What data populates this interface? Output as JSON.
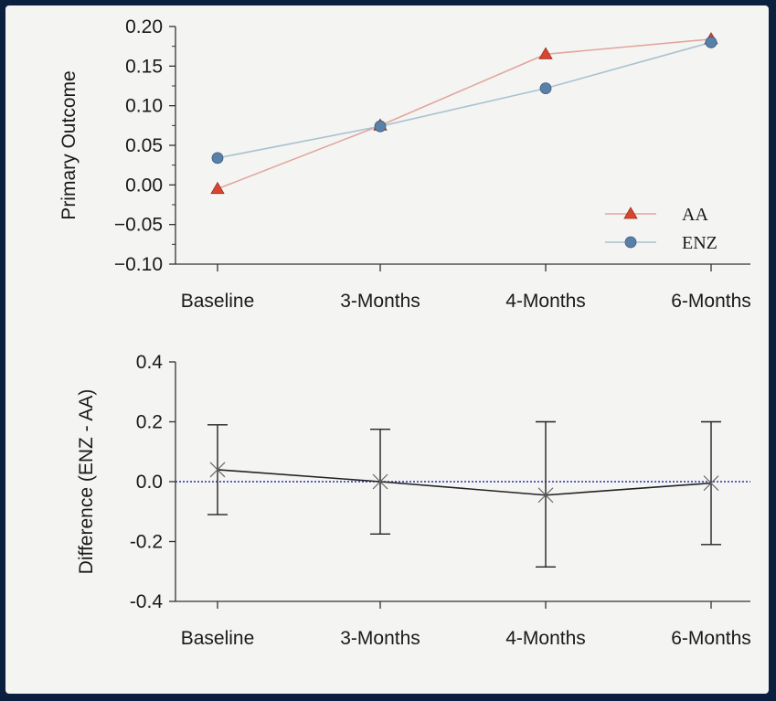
{
  "chart_data": [
    {
      "type": "line",
      "ylabel": "Primary Outcome",
      "categories": [
        "Baseline",
        "3-Months",
        "4-Months",
        "6-Months"
      ],
      "ylim": [
        -0.1,
        0.2
      ],
      "yticks": [
        0.2,
        0.15,
        0.1,
        0.05,
        0.0,
        -0.05,
        -0.1
      ],
      "ytick_labels": [
        "0.20",
        "0.15",
        "0.10",
        "0.05",
        "0.00",
        "−0.05",
        "−0.10"
      ],
      "grid": false,
      "legend": "bottom-right",
      "series": [
        {
          "name": "AA",
          "marker": "triangle",
          "color": "#d8462f",
          "line_color": "#e2a69c",
          "values": [
            -0.005,
            0.075,
            0.165,
            0.184
          ]
        },
        {
          "name": "ENZ",
          "marker": "circle",
          "color": "#5a80a8",
          "line_color": "#a9c2cf",
          "values": [
            0.034,
            0.074,
            0.122,
            0.18
          ]
        }
      ]
    },
    {
      "type": "errorbar",
      "ylabel": "Difference (ENZ - AA)",
      "categories": [
        "Baseline",
        "3-Months",
        "4-Months",
        "6-Months"
      ],
      "ylim": [
        -0.4,
        0.4
      ],
      "yticks": [
        0.4,
        0.2,
        0.0,
        -0.2,
        -0.4
      ],
      "ytick_labels": [
        "0.4",
        "0.2",
        "0.0",
        "-0.2",
        "-0.4"
      ],
      "grid": false,
      "reference_line": {
        "y": 0.0,
        "style": "dotted",
        "color": "#2b2fa8"
      },
      "series": [
        {
          "marker": "x",
          "color": "#222222",
          "values": [
            0.04,
            0.0,
            -0.045,
            -0.005
          ],
          "lower": [
            -0.11,
            -0.175,
            -0.285,
            -0.21
          ],
          "upper": [
            0.19,
            0.175,
            0.2,
            0.2
          ]
        }
      ]
    }
  ]
}
